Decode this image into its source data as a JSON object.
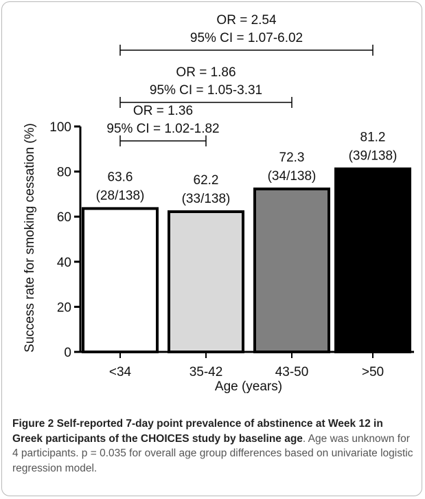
{
  "chart_data": {
    "type": "bar",
    "categories": [
      "<34",
      "35-42",
      "43-50",
      ">50"
    ],
    "values": [
      63.6,
      62.2,
      72.3,
      81.2
    ],
    "value_labels": [
      "63.6",
      "62.2",
      "72.3",
      "81.2"
    ],
    "count_labels": [
      "(28/138)",
      "(33/138)",
      "(34/138)",
      "(39/138)"
    ],
    "bar_colors": [
      "#ffffff",
      "#d9d9d9",
      "#808080",
      "#000000"
    ],
    "xlabel": "Age (years)",
    "ylabel": "Success rate for smoking cessation (%)",
    "ylim": [
      0,
      100
    ],
    "yticks": [
      0,
      20,
      40,
      60,
      80,
      100
    ],
    "ytick_labels": [
      "0",
      "20",
      "40",
      "60",
      "80",
      "100"
    ],
    "grid": false,
    "comparisons": [
      {
        "from": "<34",
        "to": "35-42",
        "or_label": "OR = 1.36",
        "ci_label": "95% CI = 1.02-1.82"
      },
      {
        "from": "<34",
        "to": "43-50",
        "or_label": "OR = 1.86",
        "ci_label": "95% CI = 1.05-3.31"
      },
      {
        "from": "<34",
        "to": ">50",
        "or_label": "OR = 2.54",
        "ci_label": "95% CI = 1.07-6.02"
      }
    ]
  },
  "caption": {
    "title": "Figure 2 Self-reported 7-day point prevalence of abstinence at Week 12 in Greek participants of the CHOICES study by baseline age",
    "body": ". Age was unknown for 4 participants. p = 0.035 for overall age group differences based on univariate logistic regression model."
  }
}
